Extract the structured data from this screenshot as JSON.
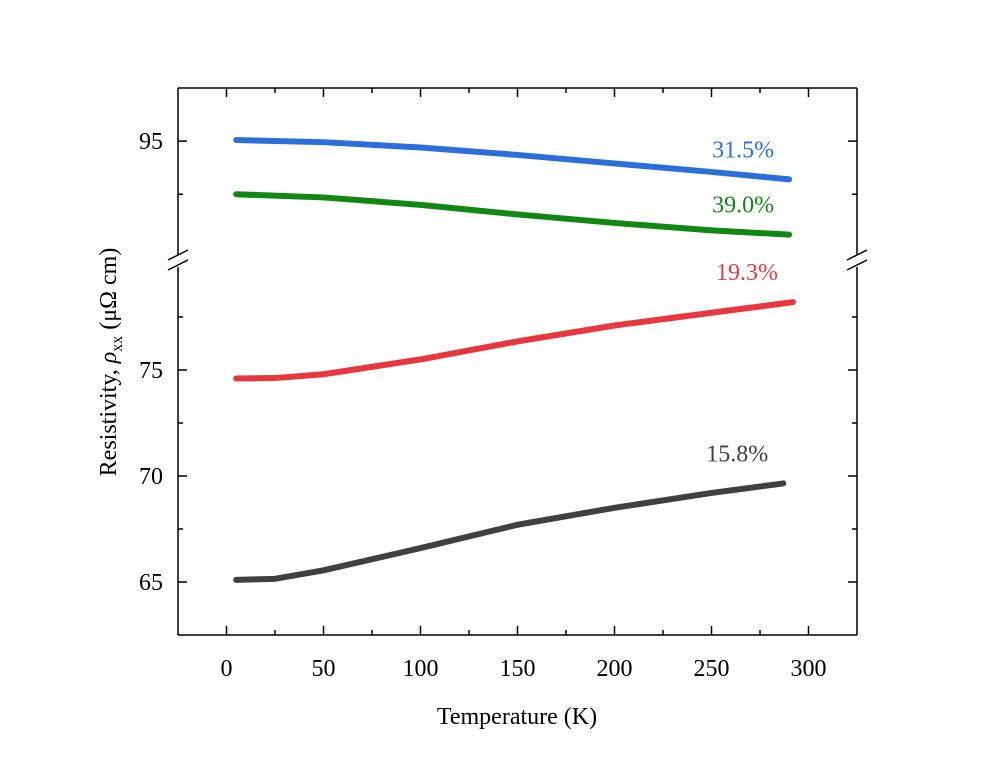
{
  "chart_data": {
    "type": "line",
    "x_label": "Temperature (K)",
    "y_label": {
      "text": "Resistivity, ",
      "symbol": "ρ",
      "subscript": "xx",
      "unit": " (μΩ cm)"
    },
    "xlim": [
      -25,
      325
    ],
    "xticks": [
      0,
      50,
      100,
      150,
      200,
      250,
      300
    ],
    "xminorticks": [
      25,
      75,
      125,
      175,
      225,
      275
    ],
    "ylim": [
      62.5,
      97.5
    ],
    "ybreak": [
      80,
      89.5
    ],
    "yticks": [
      65,
      70,
      75,
      95
    ],
    "yminorticks": [
      67.5,
      72.5,
      77.5,
      92.5
    ],
    "series": [
      {
        "name": "31.5%",
        "color": "#2a6fdb",
        "x": [
          5,
          50,
          100,
          150,
          200,
          250,
          290
        ],
        "values": [
          95.05,
          94.95,
          94.7,
          94.35,
          93.95,
          93.55,
          93.2
        ]
      },
      {
        "name": "39.0%",
        "color": "#118811",
        "x": [
          5,
          50,
          100,
          150,
          200,
          250,
          290
        ],
        "values": [
          92.5,
          92.35,
          92.0,
          91.55,
          91.15,
          90.8,
          90.6
        ]
      },
      {
        "name": "19.3%",
        "color": "#e8383d",
        "x": [
          5,
          25,
          50,
          100,
          150,
          200,
          250,
          292
        ],
        "values": [
          74.6,
          74.62,
          74.8,
          75.5,
          76.35,
          77.1,
          77.7,
          78.2
        ]
      },
      {
        "name": "15.8%",
        "color": "#404040",
        "x": [
          5,
          25,
          50,
          100,
          150,
          200,
          250,
          287
        ],
        "values": [
          65.1,
          65.15,
          65.55,
          66.6,
          67.7,
          68.5,
          69.2,
          69.65
        ]
      }
    ]
  }
}
